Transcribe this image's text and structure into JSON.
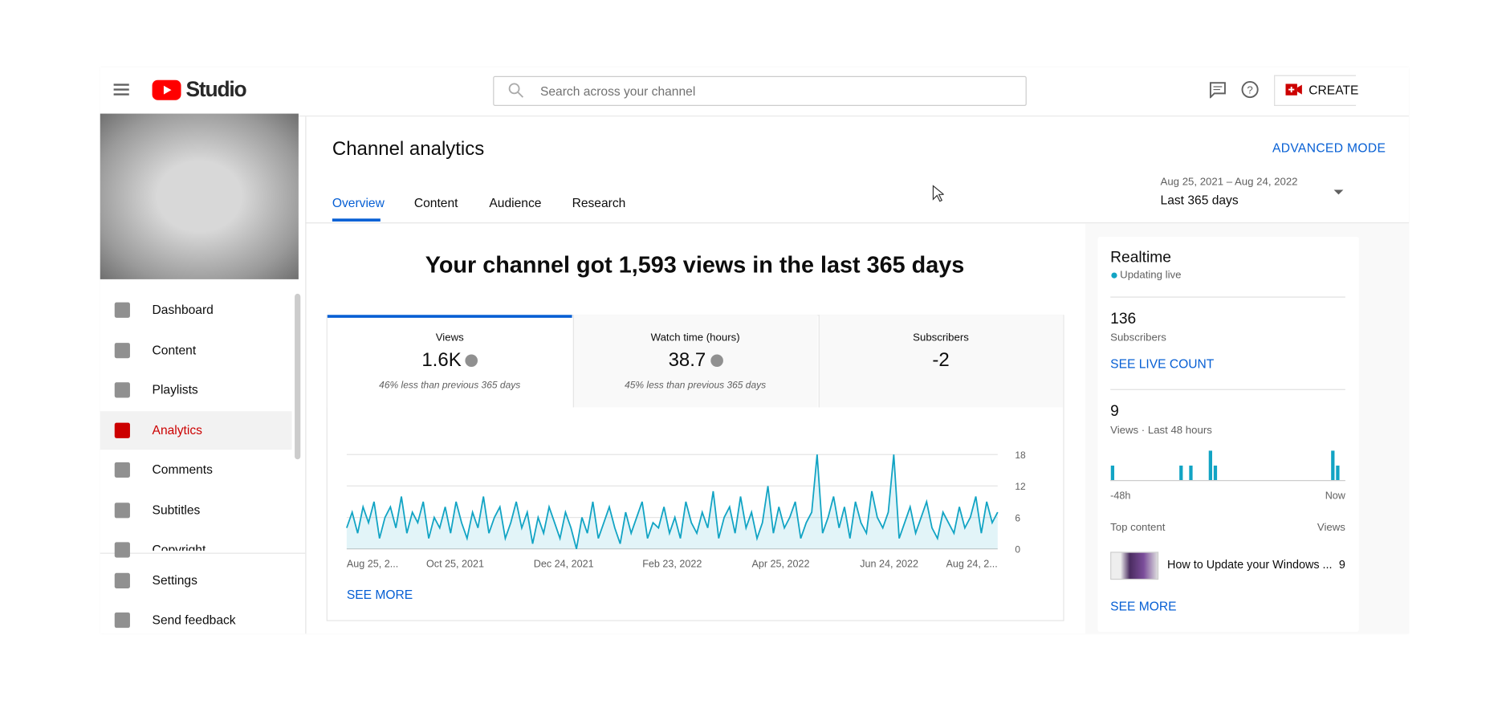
{
  "header": {
    "search_placeholder": "Search across your channel",
    "create": "CREATE",
    "logo": "Studio"
  },
  "sidebar": {
    "items": [
      "Dashboard",
      "Content",
      "Playlists",
      "Analytics",
      "Comments",
      "Subtitles",
      "Copyright"
    ],
    "active": 3,
    "bottom": [
      "Settings",
      "Send feedback"
    ]
  },
  "main": {
    "title": "Channel analytics",
    "advanced_mode": "ADVANCED MODE",
    "tabs": [
      "Overview",
      "Content",
      "Audience",
      "Research"
    ],
    "date_range": "Aug 25, 2021 – Aug 24, 2022",
    "period": "Last 365 days",
    "headline": "Your channel got 1,593 views in the last 365 days",
    "metrics": [
      {
        "label": "Views",
        "value": "1.6K",
        "delta": "46% less than previous 365 days"
      },
      {
        "label": "Watch time (hours)",
        "value": "38.7",
        "delta": "45% less than previous 365 days"
      },
      {
        "label": "Subscribers",
        "value": "-2"
      }
    ],
    "see_more": "SEE MORE"
  },
  "chart_data": [
    {
      "type": "line",
      "color": "#12a4c4",
      "x_labels": [
        "Aug 25, 2...",
        "Oct 25, 2021",
        "Dec 24, 2021",
        "Feb 23, 2022",
        "Apr 25, 2022",
        "Jun 24, 2022",
        "Aug 24, 2..."
      ],
      "values": [
        4,
        7,
        3,
        8,
        5,
        9,
        2,
        6,
        8,
        4,
        10,
        3,
        7,
        5,
        9,
        2,
        6,
        4,
        8,
        3,
        9,
        5,
        2,
        7,
        4,
        10,
        3,
        6,
        8,
        2,
        5,
        9,
        4,
        7,
        1,
        6,
        3,
        8,
        5,
        2,
        7,
        4,
        0,
        6,
        3,
        9,
        2,
        5,
        8,
        4,
        1,
        7,
        3,
        6,
        9,
        2,
        5,
        4,
        8,
        3,
        6,
        2,
        9,
        5,
        3,
        7,
        4,
        11,
        2,
        6,
        8,
        3,
        10,
        4,
        7,
        2,
        5,
        12,
        3,
        8,
        4,
        6,
        9,
        2,
        5,
        7,
        18,
        3,
        6,
        10,
        4,
        8,
        2,
        9,
        5,
        3,
        11,
        6,
        4,
        7,
        18,
        2,
        5,
        8,
        3,
        6,
        9,
        4,
        2,
        7,
        5,
        3,
        8,
        4,
        6,
        10,
        3,
        9,
        5,
        7
      ],
      "ylim": [
        0,
        18
      ],
      "yticks": [
        0,
        6,
        12,
        18
      ],
      "grid": true
    },
    {
      "type": "bar",
      "color": "#12a4c4",
      "x_labels": [
        "-48h",
        "Now"
      ],
      "values": [
        1,
        0,
        0,
        0,
        0,
        0,
        0,
        0,
        0,
        0,
        0,
        0,
        0,
        0,
        1,
        0,
        1,
        0,
        0,
        0,
        2,
        1,
        0,
        0,
        0,
        0,
        0,
        0,
        0,
        0,
        0,
        0,
        0,
        0,
        0,
        0,
        0,
        0,
        0,
        0,
        0,
        0,
        0,
        0,
        0,
        2,
        1,
        0
      ],
      "ylim": [
        0,
        2
      ]
    }
  ],
  "realtime": {
    "title": "Realtime",
    "status": "Updating live",
    "subscribers": "136",
    "subscribers_label": "Subscribers",
    "live_count": "SEE LIVE COUNT",
    "views": "9",
    "views_label": "Views · Last 48 hours",
    "top_content": "Top content",
    "views_col": "Views",
    "video_title": "How to Update your Windows ...",
    "video_views": "9",
    "see_more": "SEE MORE"
  }
}
